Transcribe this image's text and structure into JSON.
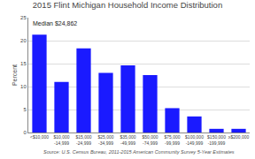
{
  "chart_data": {
    "type": "bar",
    "title": "2015 Flint Michigan Household Income Distribution",
    "ylabel": "Percent",
    "annotations": [
      "Median $24,862",
      "Source: U.S. Census Bureau, 2011-2015 American Community Survey 5-Year Estimates"
    ],
    "categories": [
      "<$10,000",
      "$10,000\n-14,999",
      "$15,000\n-24,999",
      "$25,000\n-34,999",
      "$35,000\n-49,999",
      "$50,000\n-74,999",
      "$75,000\n-99,999",
      "$100,000\n-149,999",
      "$150,000\n-199,999",
      "≥$200,000"
    ],
    "values": [
      21.3,
      11.0,
      18.3,
      13.0,
      14.6,
      12.5,
      5.3,
      3.5,
      0.8,
      0.8
    ],
    "color": "#1a1aff",
    "ylim": [
      0,
      25
    ],
    "yticks": [
      0,
      5,
      10,
      15,
      20,
      25
    ],
    "grid": true
  }
}
